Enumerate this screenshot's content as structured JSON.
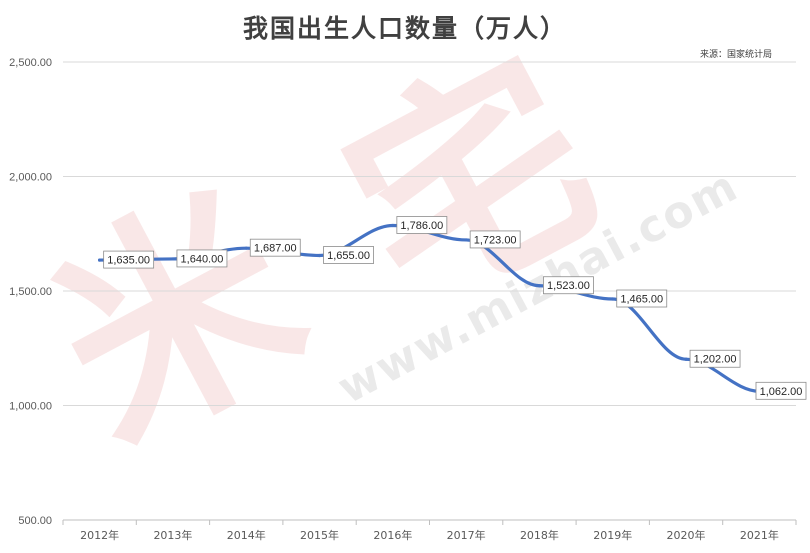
{
  "chart_data": {
    "type": "line",
    "title": "我国出生人口数量（万人）",
    "source": "来源：国家统计局",
    "watermark": {
      "glyphs": "米宅",
      "url": "www.mizhai.com"
    },
    "categories": [
      "2012年",
      "2013年",
      "2014年",
      "2015年",
      "2016年",
      "2017年",
      "2018年",
      "2019年",
      "2020年",
      "2021年"
    ],
    "series": [
      {
        "values": [
          1635,
          1640,
          1687,
          1655,
          1786,
          1723,
          1523,
          1465,
          1202,
          1062
        ],
        "labels": [
          "1,635.00",
          "1,640.00",
          "1,687.00",
          "1,655.00",
          "1,786.00",
          "1,723.00",
          "1,523.00",
          "1,465.00",
          "1,202.00",
          "1,062.00"
        ],
        "color": "#4472c4"
      }
    ],
    "ylim": [
      500,
      2500
    ],
    "yticks": [
      500,
      1000,
      1500,
      2000,
      2500
    ],
    "ytick_labels": [
      "500.00",
      "1,000.00",
      "1,500.00",
      "2,000.00",
      "2,500.00"
    ],
    "grid": true,
    "xlabel": "",
    "ylabel": "",
    "colors": {
      "line": "#4472c4",
      "grid": "#d9d9d9",
      "text": "#404040"
    }
  }
}
